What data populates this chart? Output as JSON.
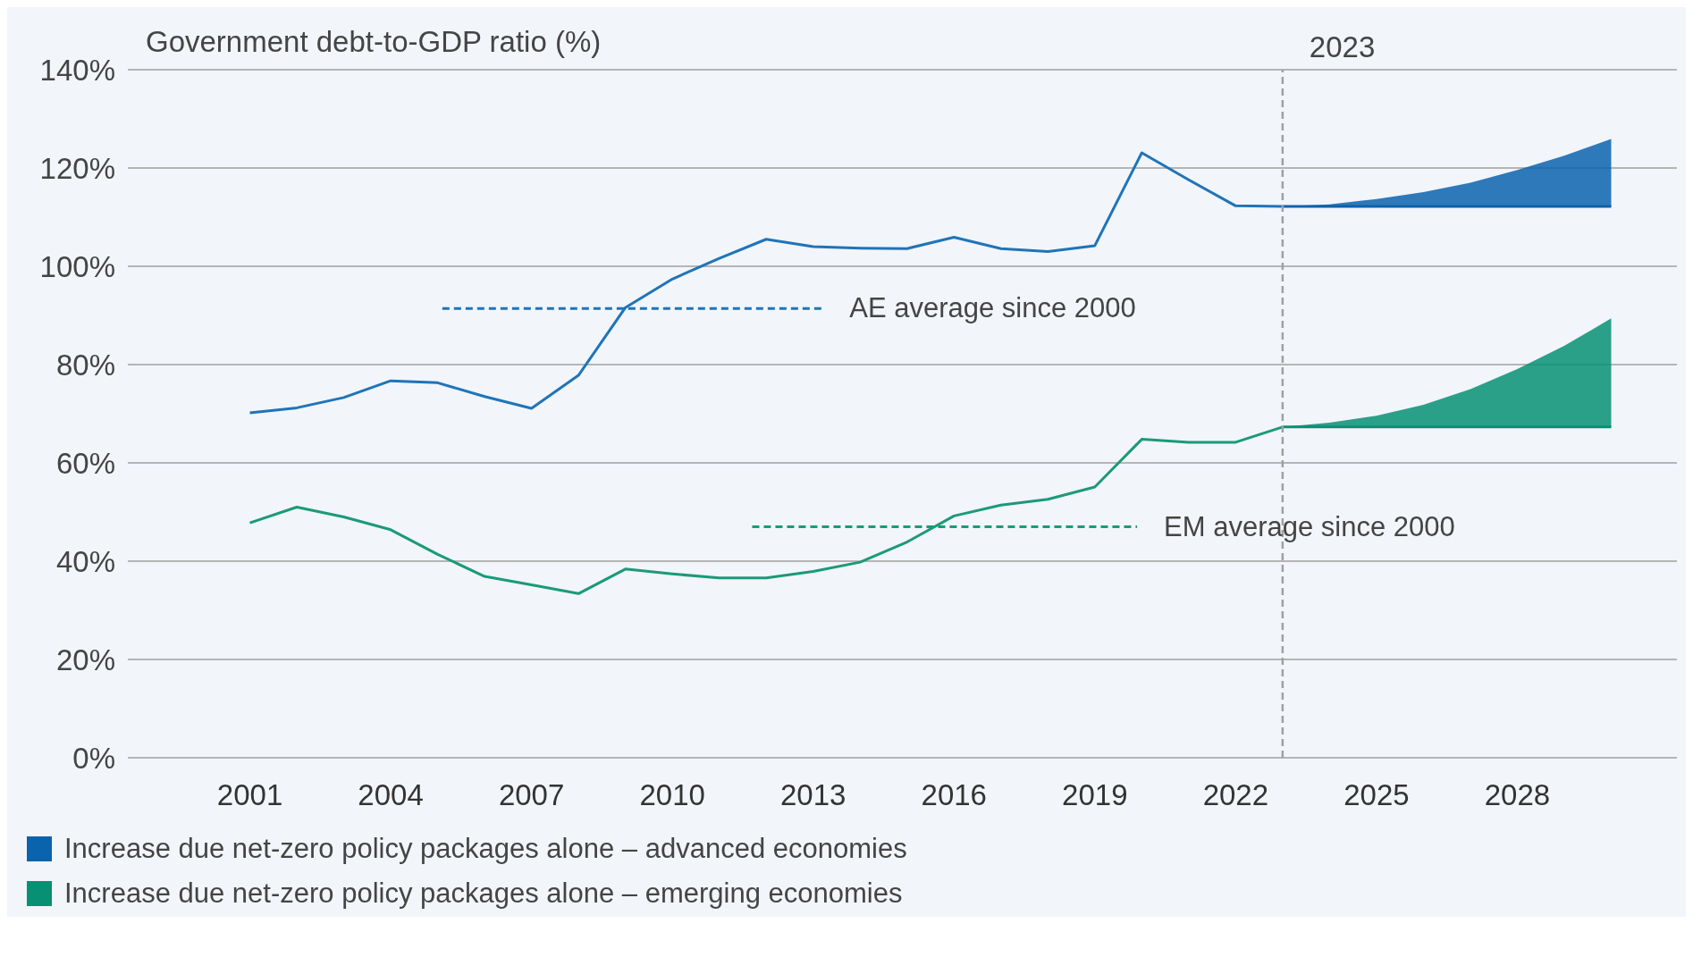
{
  "chart_data": {
    "type": "line",
    "ylabel": "Government debt-to-GDP ratio (%)",
    "xlim": [
      1998.4,
      2031.4
    ],
    "xticks": [
      2001,
      2004,
      2007,
      2010,
      2013,
      2016,
      2019,
      2022,
      2025,
      2028
    ],
    "ylim": [
      0,
      140
    ],
    "yticks": [
      {
        "value": 0,
        "label": "0%"
      },
      {
        "value": 20,
        "label": "20%"
      },
      {
        "value": 40,
        "label": "40%"
      },
      {
        "value": 60,
        "label": "60%"
      },
      {
        "value": 80,
        "label": "80%"
      },
      {
        "value": 100,
        "label": "100%"
      },
      {
        "value": 120,
        "label": "120%"
      },
      {
        "value": 140,
        "label": "140%"
      }
    ],
    "grid": "y",
    "legend": "bottom",
    "marker": "none",
    "ref_lines": [
      {
        "axis": "x",
        "value": 2023,
        "label": "2023",
        "color": "#a0a0a0",
        "line_style": "dashed"
      }
    ],
    "series": [
      {
        "type": "line",
        "color": "#1f74b8",
        "x": [
          2001,
          2002,
          2003,
          2004,
          2005,
          2006,
          2007,
          2008,
          2009,
          2010,
          2011,
          2012,
          2013,
          2014,
          2015,
          2016,
          2017,
          2018,
          2019,
          2020,
          2021,
          2022,
          2023
        ],
        "values": [
          70.2,
          71.2,
          73.3,
          76.7,
          76.3,
          73.5,
          71.1,
          77.8,
          91.6,
          97.4,
          101.6,
          105.5,
          104.0,
          103.7,
          103.6,
          105.9,
          103.6,
          103.0,
          104.2,
          123.1,
          117.6,
          112.3,
          112.2
        ]
      },
      {
        "type": "line",
        "color": "#1a9a78",
        "x": [
          2001,
          2002,
          2003,
          2004,
          2005,
          2006,
          2007,
          2008,
          2009,
          2010,
          2011,
          2012,
          2013,
          2014,
          2015,
          2016,
          2017,
          2018,
          2019,
          2020,
          2021,
          2022,
          2023
        ],
        "values": [
          47.8,
          51.0,
          49.0,
          46.4,
          41.4,
          36.9,
          35.2,
          33.4,
          38.4,
          37.4,
          36.6,
          36.6,
          37.9,
          39.8,
          43.9,
          49.2,
          51.4,
          52.6,
          55.1,
          64.8,
          64.2,
          64.2,
          67.3
        ]
      },
      {
        "name": "Increase due net-zero policy packages alone – advanced economies",
        "color": "#0a63ad",
        "x": [
          2023,
          2024,
          2025,
          2026,
          2027,
          2028,
          2029,
          2030
        ],
        "values": [
          112.2,
          112.2,
          112.2,
          112.2,
          112.2,
          112.2,
          112.2,
          112.2
        ],
        "lower": [
          112.2,
          112.2,
          112.2,
          112.2,
          112.2,
          112.2,
          112.2,
          112.2
        ],
        "upper": [
          112.2,
          112.6,
          113.7,
          115.1,
          117.0,
          119.6,
          122.5,
          125.9
        ]
      },
      {
        "name": "Increase due net-zero policy packages alone – emerging economies",
        "color": "#079073",
        "x": [
          2023,
          2024,
          2025,
          2026,
          2027,
          2028,
          2029,
          2030
        ],
        "values": [
          67.3,
          67.3,
          67.3,
          67.3,
          67.3,
          67.3,
          67.3,
          67.3
        ],
        "lower": [
          67.3,
          67.3,
          67.3,
          67.3,
          67.3,
          67.3,
          67.3,
          67.3
        ],
        "upper": [
          67.3,
          68.2,
          69.6,
          71.8,
          75.0,
          79.1,
          83.8,
          89.4
        ]
      },
      {
        "type": "line",
        "name": "AE average since 2000",
        "color": "#1f74b8",
        "line_style": "dashed",
        "x": [
          2005.1,
          2013.2
        ],
        "values": [
          91.4,
          91.4
        ]
      },
      {
        "type": "line",
        "name": "EM average since 2000",
        "color": "#1a9a78",
        "line_style": "dashed",
        "x": [
          2011.7,
          2019.9
        ],
        "values": [
          47.0,
          47.0
        ]
      }
    ]
  }
}
